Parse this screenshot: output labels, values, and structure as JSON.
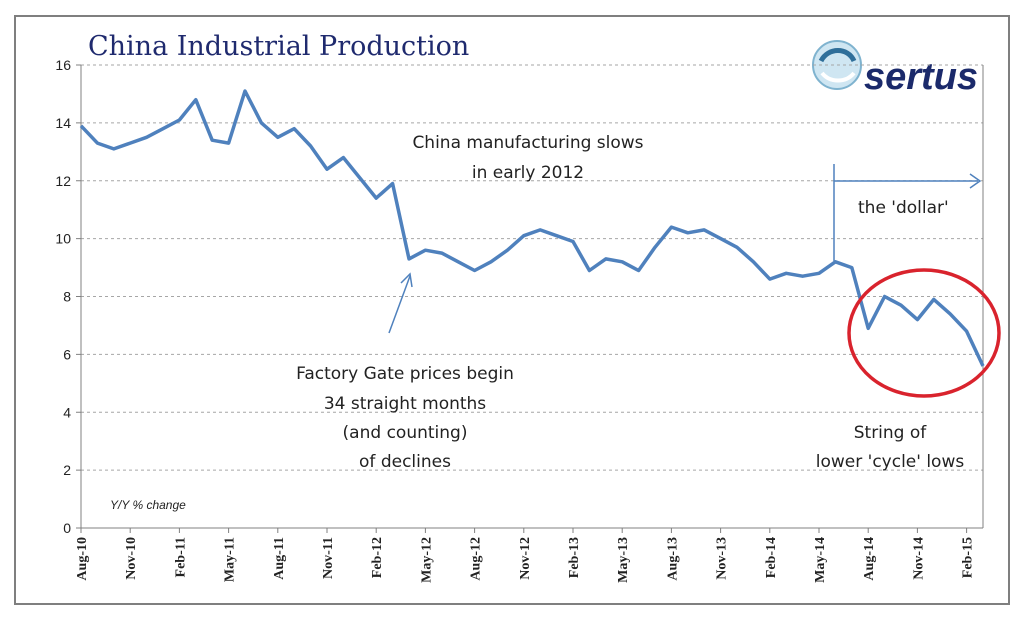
{
  "chart_data": {
    "type": "line",
    "title": "China Industrial Production",
    "ylabel": "Y/Y % change",
    "ylim": [
      0,
      16
    ],
    "yticks": [
      0,
      2,
      4,
      6,
      8,
      10,
      12,
      14,
      16
    ],
    "x_tick_labels": [
      "Aug-10",
      "Nov-10",
      "Feb-11",
      "May-11",
      "Aug-11",
      "Nov-11",
      "Feb-12",
      "May-12",
      "Aug-12",
      "Nov-12",
      "Feb-13",
      "May-13",
      "Aug-13",
      "Nov-13",
      "Feb-14",
      "May-14",
      "Aug-14",
      "Nov-14",
      "Feb-15"
    ],
    "series": [
      {
        "name": "China Industrial Production Y/Y",
        "color": "#4f81bd",
        "values": [
          13.9,
          13.3,
          13.1,
          13.3,
          13.5,
          13.8,
          14.1,
          14.8,
          13.4,
          13.3,
          15.1,
          14.0,
          13.5,
          13.8,
          13.2,
          12.4,
          12.8,
          12.1,
          11.4,
          11.9,
          9.3,
          9.6,
          9.5,
          9.2,
          8.9,
          9.2,
          9.6,
          10.1,
          10.3,
          10.1,
          9.9,
          8.9,
          9.3,
          9.2,
          8.9,
          9.7,
          10.4,
          10.2,
          10.3,
          10.0,
          9.7,
          9.2,
          8.6,
          8.8,
          8.7,
          8.8,
          9.2,
          9.0,
          6.9,
          8.0,
          7.7,
          7.2,
          7.9,
          7.4,
          6.8,
          5.6
        ]
      }
    ],
    "annotations": {
      "manufacturing": [
        "China manufacturing slows",
        "in early 2012"
      ],
      "factory_gate": [
        "Factory Gate prices begin",
        "34 straight months",
        "(and counting)",
        "of declines"
      ],
      "dollar": "the 'dollar'",
      "string_of_lows": [
        "String of",
        "lower 'cycle' lows"
      ]
    },
    "colors": {
      "line": "#4f81bd",
      "circle": "#d9232d",
      "title": "#1f2a6e",
      "axis": "#808080"
    }
  },
  "logo": {
    "text": "sertus"
  }
}
